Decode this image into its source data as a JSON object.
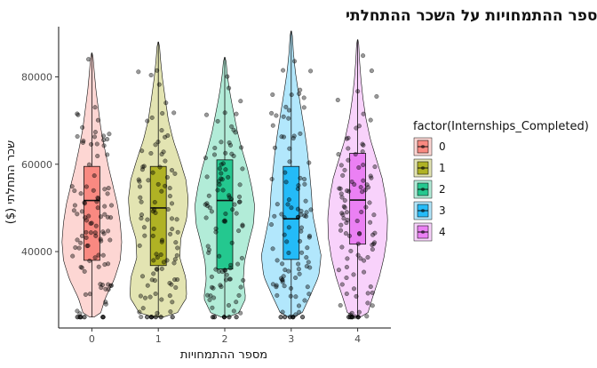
{
  "chart_data": {
    "type": "violin",
    "title": "השפעת מספר ההתמחויות על השכר ההתחלתי",
    "xlabel": "מספר ההתמחויות",
    "ylabel": "שכר התחלתי ($)",
    "categories": [
      "0",
      "1",
      "2",
      "3",
      "4"
    ],
    "y_ticks": [
      40000,
      60000,
      80000
    ],
    "ylim": [
      22500,
      91500
    ],
    "legend": {
      "title": "factor(Internships_Completed)",
      "placement": "right",
      "entries": [
        "0",
        "1",
        "2",
        "3",
        "4"
      ]
    },
    "colors": [
      "#F8766D",
      "#A3A500",
      "#00BF7D",
      "#00B0F6",
      "#E76BF3"
    ],
    "groups": [
      {
        "category": "0",
        "min": 25000,
        "max": 85500,
        "box": {
          "q1": 38000,
          "median": 51700,
          "q3": 59500,
          "lower": 25000,
          "upper": 85500
        }
      },
      {
        "category": "1",
        "min": 25000,
        "max": 88000,
        "box": {
          "q1": 36800,
          "median": 50000,
          "q3": 59500,
          "lower": 25000,
          "upper": 88000
        }
      },
      {
        "category": "2",
        "min": 25000,
        "max": 84500,
        "box": {
          "q1": 36000,
          "median": 51700,
          "q3": 61000,
          "lower": 25000,
          "upper": 84500
        }
      },
      {
        "category": "3",
        "min": 25000,
        "max": 90500,
        "box": {
          "q1": 38200,
          "median": 47500,
          "q3": 59500,
          "lower": 25000,
          "upper": 90500
        }
      },
      {
        "category": "4",
        "min": 25000,
        "max": 88500,
        "box": {
          "q1": 41700,
          "median": 51800,
          "q3": 62500,
          "lower": 25000,
          "upper": 88500
        }
      }
    ],
    "grid": false
  }
}
